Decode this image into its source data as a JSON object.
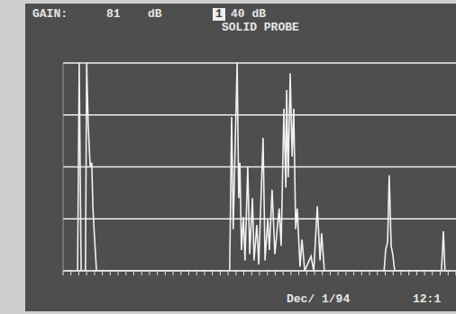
{
  "chart_data": {
    "type": "line",
    "title": "SOLID PROBE",
    "annotations": [
      "GAIN:",
      "81",
      "dB",
      "1",
      "40 dB",
      "Dec/ 1/94",
      "12:1"
    ],
    "x": [
      3.7,
      4.1,
      4.6,
      5.7,
      6.0,
      6.4,
      6.9,
      7.3,
      7.6,
      8.0,
      8.5,
      42.4,
      42.9,
      43.3,
      43.8,
      44.3,
      44.7,
      45.0,
      45.4,
      45.9,
      46.3,
      47.0,
      47.5,
      48.2,
      48.6,
      49.3,
      49.8,
      50.9,
      51.4,
      52.1,
      52.5,
      53.2,
      53.9,
      55.0,
      55.5,
      56.2,
      56.7,
      56.9,
      57.3,
      57.8,
      58.3,
      58.7,
      59.2,
      59.6,
      60.3,
      60.8,
      61.5,
      63.1,
      63.8,
      64.7,
      65.4,
      65.8,
      66.5,
      81.7,
      82.1,
      82.6,
      83.0,
      83.5,
      83.9,
      84.4,
      96.3,
      96.8,
      97.2,
      98.6
    ],
    "values": [
      0,
      100,
      0,
      0,
      100,
      70,
      50,
      52,
      30,
      16,
      0,
      0,
      74,
      20,
      60,
      100,
      35,
      52,
      10,
      26,
      5,
      50,
      8,
      35,
      5,
      22,
      3,
      64,
      5,
      25,
      10,
      39,
      8,
      30,
      12,
      78,
      40,
      87,
      45,
      95,
      55,
      78,
      20,
      30,
      2,
      15,
      0,
      7,
      0,
      31,
      5,
      18,
      0,
      0,
      10,
      14,
      46,
      12,
      8,
      0,
      0,
      19,
      0,
      0
    ],
    "color": "#f2f2f2",
    "xlim": [
      0,
      100
    ],
    "xticks": [
      0,
      2,
      4,
      6,
      8,
      10,
      12,
      14,
      16,
      18,
      20,
      22,
      24,
      26,
      28,
      30,
      32,
      34,
      36,
      38,
      40,
      42,
      44,
      46,
      48,
      50,
      52,
      54,
      56,
      58,
      60,
      62,
      64,
      66,
      68,
      70,
      72,
      74,
      76,
      78,
      80,
      82,
      84,
      86,
      88,
      90,
      92,
      94,
      96,
      98,
      100
    ],
    "ylim": [
      0,
      100
    ],
    "yticks": [
      0,
      25,
      50,
      75,
      100
    ],
    "grid": true,
    "tick_labels": false
  }
}
